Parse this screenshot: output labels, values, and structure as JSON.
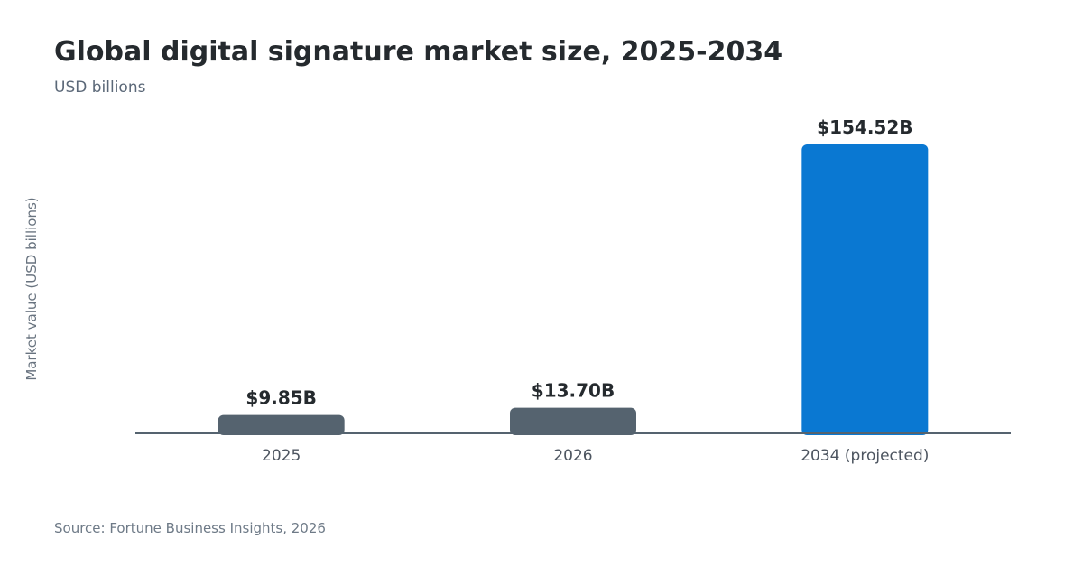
{
  "chart_data": {
    "type": "bar",
    "title": "Global digital signature market size, 2025-2034",
    "subtitle": "USD billions",
    "ylabel": "Market value (USD billions)",
    "xlabel": "",
    "categories": [
      "2025",
      "2026",
      "2034 (projected)"
    ],
    "values": [
      9.85,
      13.7,
      154.52
    ],
    "data_labels": [
      "$9.85B",
      "$13.70B",
      "$154.52B"
    ],
    "bar_colors": [
      "#55636f",
      "#55636f",
      "#0a78d2"
    ],
    "ylim": [
      0,
      154.52
    ],
    "grid": false,
    "legend": "none",
    "source": "Source: Fortune Business Insights, 2026"
  }
}
